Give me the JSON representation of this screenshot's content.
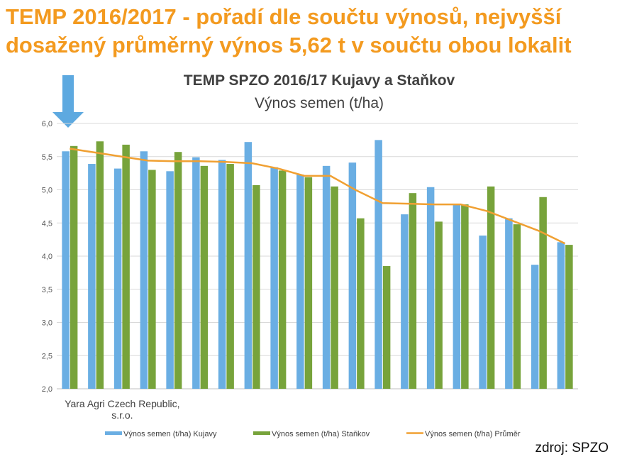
{
  "headline": {
    "line1": "TEMP 2016/2017 -  pořadí dle součtu výnosů, nejvyšší",
    "line2": "dosažený průměrný výnos 5,62 t v součtu obou lokalit"
  },
  "source": "zdroj:  SPZO",
  "arrow_color": "#5DA9E0",
  "chart_data": {
    "type": "bar",
    "title": "TEMP SPZO 2016/17 Kujavy a Staňkov",
    "subtitle": "Výnos semen (t/ha)",
    "xlabel": "",
    "ylabel": "",
    "ylim": [
      2.0,
      6.0
    ],
    "yticks": [
      "2,0",
      "2,5",
      "3,0",
      "3,5",
      "4,0",
      "4,5",
      "5,0",
      "5,5",
      "6,0"
    ],
    "grid": true,
    "legend_position": "bottom",
    "categories": [
      "Yara Agri Czech Republic, s.r.o.",
      "",
      "",
      "",
      "",
      "",
      "",
      "",
      "",
      "",
      "",
      "",
      "",
      "",
      "",
      "",
      "",
      "",
      "",
      ""
    ],
    "series": [
      {
        "name": "Výnos semen (t/ha) Kujavy",
        "type": "bar",
        "color": "#6AAEE3",
        "values": [
          5.58,
          5.39,
          5.32,
          5.58,
          5.28,
          5.49,
          5.45,
          5.72,
          5.34,
          5.23,
          5.36,
          5.41,
          5.75,
          4.63,
          5.04,
          4.78,
          4.31,
          4.57,
          3.87,
          4.21
        ]
      },
      {
        "name": "Výnos semen (t/ha) Staňkov",
        "type": "bar",
        "color": "#77A33B",
        "values": [
          5.66,
          5.73,
          5.68,
          5.3,
          5.57,
          5.36,
          5.39,
          5.07,
          5.29,
          5.19,
          5.05,
          4.57,
          3.85,
          4.95,
          4.52,
          4.78,
          5.05,
          4.48,
          4.89,
          4.17
        ]
      },
      {
        "name": "Výnos semen (t/ha) Průměr",
        "type": "line",
        "color": "#F0A032",
        "values": [
          5.62,
          5.56,
          5.5,
          5.44,
          5.43,
          5.43,
          5.42,
          5.4,
          5.32,
          5.21,
          5.21,
          4.99,
          4.8,
          4.79,
          4.78,
          4.78,
          4.68,
          4.53,
          4.38,
          4.19
        ]
      }
    ]
  }
}
